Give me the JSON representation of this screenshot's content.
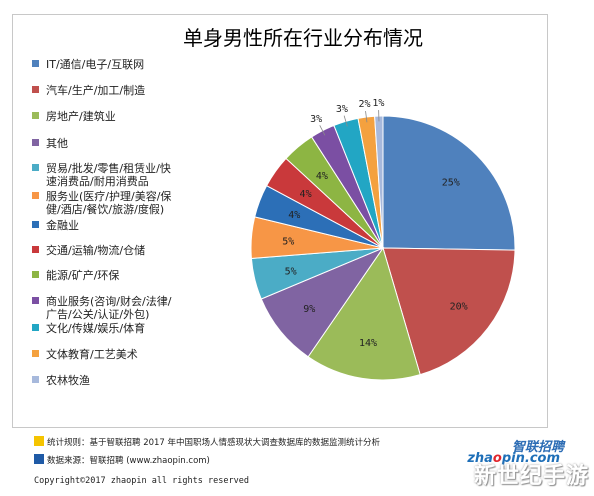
{
  "chart_data": {
    "type": "pie",
    "title": "单身男性所在行业分布情况",
    "slices": [
      {
        "label": "IT/通信/电子/互联网",
        "value": 25,
        "value_label": "25%",
        "color": "#4f81bd"
      },
      {
        "label": "汽车/生产/加工/制造",
        "value": 20,
        "value_label": "20%",
        "color": "#c0504d"
      },
      {
        "label": "房地产/建筑业",
        "value": 14,
        "value_label": "14%",
        "color": "#9bbb59"
      },
      {
        "label": "其他",
        "value": 9,
        "value_label": "9%",
        "color": "#8064a2"
      },
      {
        "label": "贸易/批发/零售/租赁业/快速消费品/耐用消费品",
        "value": 5,
        "value_label": "5%",
        "color": "#4bacc6"
      },
      {
        "label": "服务业(医疗/护理/美容/保健/酒店/餐饮/旅游/度假)",
        "value": 5,
        "value_label": "5%",
        "color": "#f79646"
      },
      {
        "label": "金融业",
        "value": 4,
        "value_label": "4%",
        "color": "#2c6fb7"
      },
      {
        "label": "交通/运输/物流/仓储",
        "value": 4,
        "value_label": "4%",
        "color": "#c9393b"
      },
      {
        "label": "能源/矿产/环保",
        "value": 4,
        "value_label": "4%",
        "color": "#8db543"
      },
      {
        "label": "商业服务(咨询/财会/法律/广告/公关/认证/外包)",
        "value": 3,
        "value_label": "3%",
        "color": "#7b4fa3"
      },
      {
        "label": "文化/传媒/娱乐/体育",
        "value": 3,
        "value_label": "3%",
        "color": "#22a6c4"
      },
      {
        "label": "文体教育/工艺美术",
        "value": 2,
        "value_label": "2%",
        "color": "#f4a13f"
      },
      {
        "label": "农林牧渔",
        "value": 1,
        "value_label": "1%",
        "color": "#a7b9dc"
      }
    ],
    "legend_position": "left"
  },
  "legend_display": [
    [
      "IT/通信/电子/互联网"
    ],
    [
      "汽车/生产/加工/制造"
    ],
    [
      "房地产/建筑业"
    ],
    [
      "其他"
    ],
    [
      "贸易/批发/零售/租赁业/快",
      "速消费品/耐用消费品"
    ],
    [
      "服务业(医疗/护理/美容/保",
      "健/酒店/餐饮/旅游/度假)"
    ],
    [
      "金融业"
    ],
    [
      "交通/运输/物流/仓储"
    ],
    [
      "能源/矿产/环保"
    ],
    [
      "商业服务(咨询/财会/法律/",
      "广告/公关/认证/外包)"
    ],
    [
      "文化/传媒/娱乐/体育"
    ],
    [
      "文体教育/工艺美术"
    ],
    [
      "农林牧渔"
    ]
  ],
  "footer": {
    "rule_text": "统计规则：基于智联招聘 2017 年中国职场人情感现状大调查数据库的数据监测统计分析",
    "rule_color": "#f5c400",
    "source_text": "数据来源：智联招聘 (www.zhaopin.com)",
    "source_color": "#1f5aa6",
    "copyright": "Copyright©2017 zhaopin all rights reserved"
  },
  "logo": {
    "cn": "智联招聘",
    "en_prefix": "zha",
    "en_mid": "o",
    "en_suffix": "pin.com"
  },
  "watermark": "新世纪手游"
}
